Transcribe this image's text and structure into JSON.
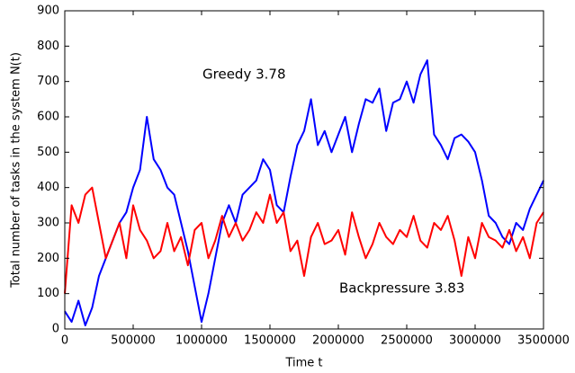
{
  "chart_data": {
    "type": "line",
    "xlabel": "Time t",
    "ylabel": "Total number of tasks in the system N(t)",
    "x": [
      0,
      50000,
      100000,
      150000,
      200000,
      250000,
      300000,
      350000,
      400000,
      450000,
      500000,
      550000,
      600000,
      650000,
      700000,
      750000,
      800000,
      850000,
      900000,
      950000,
      1000000,
      1050000,
      1100000,
      1150000,
      1200000,
      1250000,
      1300000,
      1350000,
      1400000,
      1450000,
      1500000,
      1550000,
      1600000,
      1650000,
      1700000,
      1750000,
      1800000,
      1850000,
      1900000,
      1950000,
      2000000,
      2050000,
      2100000,
      2150000,
      2200000,
      2250000,
      2300000,
      2350000,
      2400000,
      2450000,
      2500000,
      2550000,
      2600000,
      2650000,
      2700000,
      2750000,
      2800000,
      2850000,
      2900000,
      2950000,
      3000000,
      3050000,
      3100000,
      3150000,
      3200000,
      3250000,
      3300000,
      3350000,
      3400000,
      3450000,
      3500000
    ],
    "series": [
      {
        "name": "Greedy 3.78",
        "color": "#0000ff",
        "values": [
          50,
          20,
          80,
          10,
          60,
          150,
          200,
          250,
          300,
          330,
          400,
          450,
          600,
          480,
          450,
          400,
          380,
          300,
          220,
          120,
          20,
          100,
          200,
          300,
          350,
          300,
          380,
          400,
          420,
          480,
          450,
          350,
          330,
          430,
          520,
          560,
          650,
          520,
          560,
          500,
          550,
          600,
          500,
          580,
          650,
          640,
          680,
          560,
          640,
          650,
          700,
          640,
          720,
          760,
          550,
          520,
          480,
          540,
          550,
          530,
          500,
          420,
          320,
          300,
          260,
          240,
          300,
          280,
          340,
          380,
          420
        ]
      },
      {
        "name": "Backpressure 3.83",
        "color": "#ff0000",
        "values": [
          100,
          350,
          300,
          380,
          400,
          300,
          200,
          250,
          300,
          200,
          350,
          280,
          250,
          200,
          220,
          300,
          220,
          260,
          180,
          280,
          300,
          200,
          250,
          320,
          260,
          300,
          250,
          280,
          330,
          300,
          380,
          300,
          330,
          220,
          250,
          150,
          260,
          300,
          240,
          250,
          280,
          210,
          330,
          260,
          200,
          240,
          300,
          260,
          240,
          280,
          260,
          320,
          250,
          230,
          300,
          280,
          320,
          250,
          150,
          260,
          200,
          300,
          260,
          250,
          230,
          280,
          220,
          260,
          200,
          300,
          330
        ]
      }
    ],
    "xlim": [
      0,
      3500000
    ],
    "xticks": [
      0,
      500000,
      1000000,
      1500000,
      2000000,
      2500000,
      3000000,
      3500000
    ],
    "ylim": [
      0,
      900
    ],
    "yticks": [
      0,
      100,
      200,
      300,
      400,
      500,
      600,
      700,
      800,
      900
    ]
  }
}
